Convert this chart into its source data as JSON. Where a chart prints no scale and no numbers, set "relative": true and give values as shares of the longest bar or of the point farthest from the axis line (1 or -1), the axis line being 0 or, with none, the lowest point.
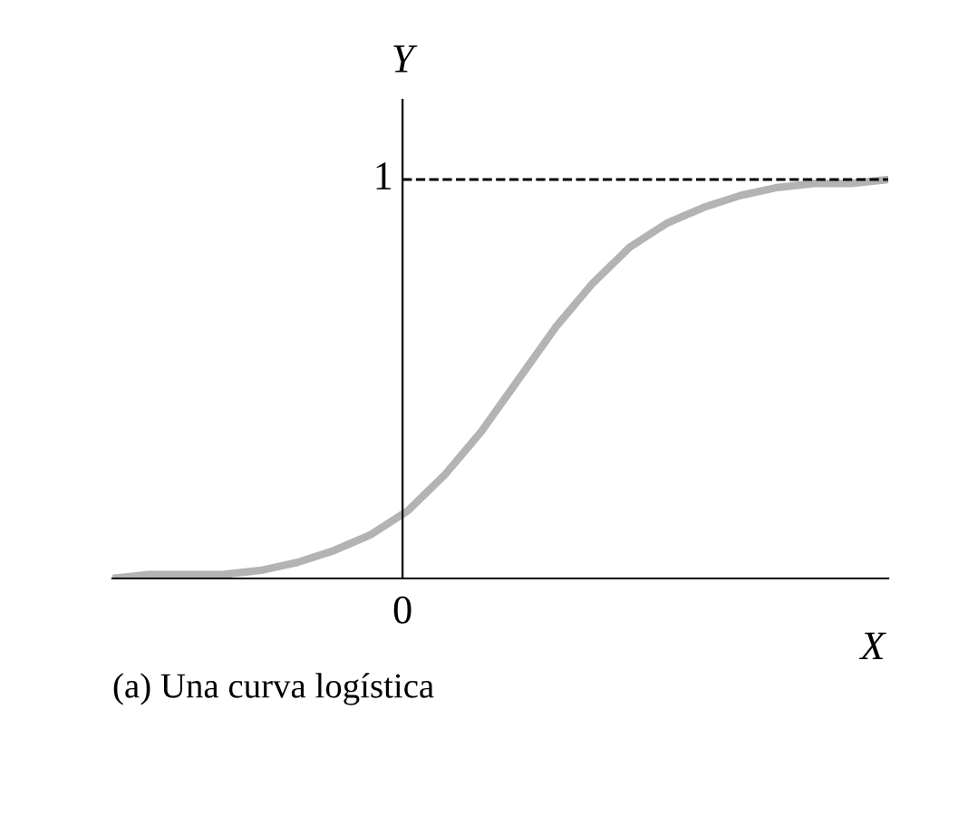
{
  "chart_data": {
    "type": "line",
    "relative": true,
    "xlabel": "X",
    "ylabel": "Y",
    "categories": [
      null,
      null,
      null,
      null,
      null,
      null,
      null,
      null,
      null,
      null,
      null,
      null,
      null,
      null,
      null,
      null,
      null,
      null,
      null,
      null,
      null,
      null
    ],
    "series": [
      {
        "color": "#b3b3b3",
        "values": [
          0.0,
          0.01,
          0.01,
          0.01,
          0.02,
          0.04,
          0.07,
          0.11,
          0.17,
          0.26,
          0.37,
          0.5,
          0.63,
          0.74,
          0.83,
          0.89,
          0.93,
          0.96,
          0.98,
          0.99,
          0.99,
          1.0
        ]
      }
    ],
    "ref_lines": [
      {
        "axis": "y",
        "value": 1,
        "label": "1",
        "color": "#000000",
        "line_style": "dashed"
      }
    ],
    "annotations": [
      "0",
      "(a) Una curva logística"
    ],
    "legend": false,
    "marker": "none",
    "line_style": "solid"
  }
}
